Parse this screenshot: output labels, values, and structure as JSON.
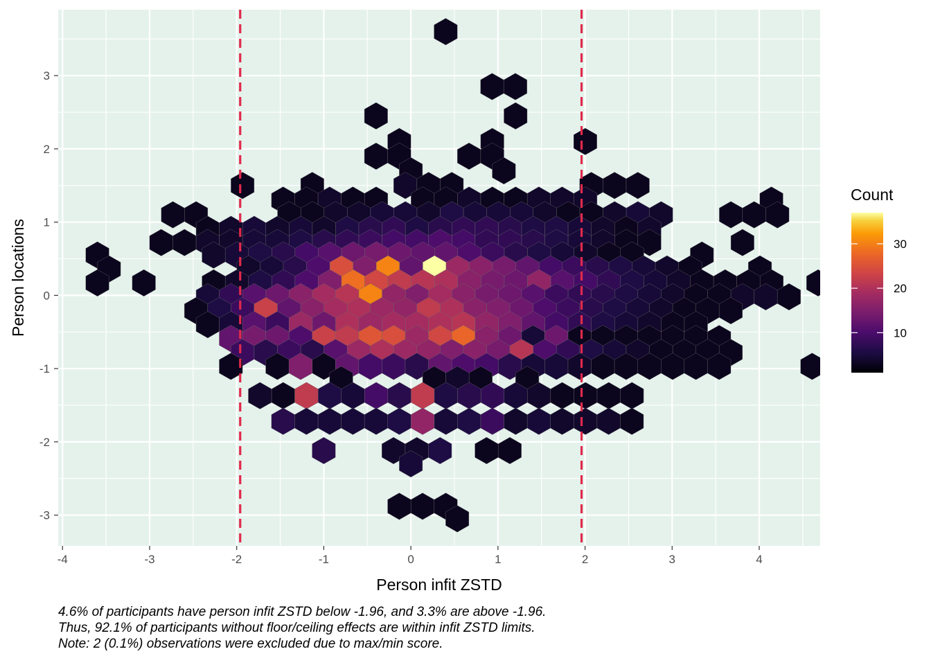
{
  "chart_data": {
    "type": "heatmap",
    "subtype": "hexbin",
    "xlabel": "Person infit ZSTD",
    "ylabel": "Person locations",
    "xlim": [
      -4.05,
      4.7
    ],
    "ylim": [
      -3.42,
      3.9
    ],
    "x_ticks": [
      -4,
      -3,
      -2,
      -1,
      0,
      1,
      2,
      3,
      4
    ],
    "y_ticks": [
      -3,
      -2,
      -1,
      0,
      1,
      2,
      3
    ],
    "x_tick_labels": [
      "-4",
      "-3",
      "-2",
      "-1",
      "0",
      "1",
      "2",
      "3",
      "4"
    ],
    "y_tick_labels": [
      "-3",
      "-2",
      "-1",
      "0",
      "1",
      "2",
      "3"
    ],
    "grid": true,
    "panel_background": "#e5f2ec",
    "reference_lines": {
      "orientation": "vertical",
      "x": [
        -1.96,
        1.96
      ],
      "style": "dashed",
      "color": "#e0294c"
    },
    "legend": {
      "title": "Count",
      "placement": "right",
      "min": 1,
      "max": 37,
      "ticks": [
        10,
        20,
        30
      ],
      "tick_labels": [
        "10",
        "20",
        "30"
      ],
      "colormap": "inferno"
    },
    "hex_row_step": 0.5,
    "hex_col_step": 0.267,
    "rows": [
      {
        "y": 3.6,
        "start": 0.4,
        "counts": [
          1
        ]
      },
      {
        "y": 2.85,
        "start": 0.933,
        "counts": [
          1,
          1
        ]
      },
      {
        "y": 2.45,
        "start": -0.4,
        "counts": [
          1,
          0,
          0,
          0,
          0,
          0,
          1
        ]
      },
      {
        "y": 2.1,
        "start": -0.133,
        "counts": [
          1,
          0,
          0,
          0,
          1,
          0,
          0,
          0,
          1
        ]
      },
      {
        "y": 1.9,
        "start": -0.4,
        "counts": [
          1,
          1,
          0,
          0,
          1,
          1
        ]
      },
      {
        "y": 1.7,
        "start": 0.0,
        "counts": [
          1,
          0,
          0,
          0,
          1
        ]
      },
      {
        "y": 1.5,
        "start": -1.933,
        "counts": [
          1,
          0,
          0,
          1,
          0,
          0,
          0,
          2,
          1,
          1,
          0,
          0,
          0,
          0,
          0,
          1,
          1,
          1,
          0,
          0,
          0,
          0,
          0,
          0,
          0,
          0,
          0,
          0,
          0,
          0,
          0,
          0,
          0,
          1
        ]
      },
      {
        "y": 1.3,
        "start": -1.467,
        "counts": [
          1,
          1,
          2,
          1,
          1,
          0,
          1,
          1,
          2,
          1,
          1,
          2,
          2,
          2,
          0,
          0,
          0,
          0,
          0,
          0,
          0,
          1
        ]
      },
      {
        "y": 1.1,
        "start": -2.733,
        "counts": [
          1,
          1,
          0,
          0,
          0,
          1,
          1,
          2,
          2,
          3,
          3,
          2,
          4,
          3,
          3,
          3,
          2,
          1,
          1,
          2,
          3,
          2,
          0,
          0,
          1,
          1,
          1
        ]
      },
      {
        "y": 0.9,
        "start": -2.333,
        "counts": [
          1,
          2,
          3,
          2,
          3,
          2,
          4,
          5,
          6,
          4,
          5,
          6,
          6,
          5,
          4,
          4,
          3,
          2,
          1,
          2,
          0,
          0,
          0,
          0,
          0,
          0,
          0,
          0,
          0,
          0,
          0,
          0,
          0,
          0,
          1
        ]
      },
      {
        "y": 0.72,
        "start": -2.867,
        "counts": [
          1,
          1,
          2,
          2,
          3,
          3,
          4,
          5,
          6,
          7,
          8,
          8,
          9,
          8,
          6,
          6,
          5,
          4,
          3,
          2,
          1,
          1,
          0,
          0,
          0,
          1,
          0,
          0,
          0,
          0,
          0,
          0,
          0,
          0,
          0,
          0,
          0,
          0,
          0,
          1
        ]
      },
      {
        "y": 0.55,
        "start": -3.6,
        "counts": [
          1,
          0,
          0,
          0,
          0,
          2,
          3,
          4,
          5,
          8,
          10,
          12,
          13,
          12,
          11,
          11,
          9,
          7,
          5,
          4,
          3,
          2,
          1,
          1,
          0,
          0,
          1,
          0,
          0,
          0,
          0,
          0,
          1
        ]
      },
      {
        "y": 0.36,
        "start": -3.467,
        "counts": [
          1,
          0,
          0,
          0,
          0,
          0,
          2,
          3,
          5,
          9,
          24,
          14,
          30,
          11,
          37,
          17,
          15,
          13,
          11,
          8,
          7,
          5,
          4,
          3,
          2,
          1,
          0,
          0,
          1,
          0,
          0,
          0,
          0,
          0,
          0,
          0,
          0,
          0,
          0,
          0,
          0,
          1
        ]
      },
      {
        "y": 0.17,
        "start": -3.6,
        "counts": [
          1,
          0,
          1,
          0,
          0,
          1,
          2,
          4,
          6,
          9,
          14,
          28,
          23,
          21,
          20,
          19,
          15,
          13,
          12,
          16,
          10,
          8,
          6,
          4,
          3,
          2,
          1,
          1,
          1,
          1,
          0,
          1
        ]
      },
      {
        "y": -0.02,
        "start": -2.333,
        "counts": [
          3,
          6,
          10,
          12,
          15,
          18,
          20,
          30,
          16,
          14,
          18,
          15,
          13,
          12,
          10,
          7,
          6,
          5,
          4,
          3,
          2,
          1,
          1,
          2,
          2,
          1
        ]
      },
      {
        "y": -0.21,
        "start": -2.467,
        "counts": [
          1,
          4,
          7,
          22,
          11,
          15,
          18,
          19,
          17,
          16,
          21,
          19,
          15,
          14,
          12,
          9,
          7,
          5,
          4,
          3,
          2,
          1,
          1,
          1,
          0,
          0,
          0,
          0,
          0,
          0,
          0,
          0,
          0,
          0,
          0,
          1
        ]
      },
      {
        "y": -0.4,
        "start": -2.333,
        "counts": [
          1,
          3,
          10,
          7,
          17,
          12,
          19,
          17,
          18,
          18,
          19,
          20,
          16,
          14,
          11,
          8,
          6,
          4,
          3,
          2,
          1,
          1,
          0,
          0,
          0,
          0,
          0,
          0,
          0,
          0,
          0,
          0,
          0,
          0,
          0,
          1
        ]
      },
      {
        "y": -0.59,
        "start": -2.067,
        "counts": [
          11,
          13,
          12,
          9,
          22,
          21,
          25,
          24,
          17,
          23,
          27,
          15,
          12,
          3,
          12,
          1,
          1,
          1,
          1,
          1,
          1,
          1,
          0,
          0,
          0,
          0,
          0,
          0,
          0,
          0,
          0,
          1
        ]
      },
      {
        "y": -0.78,
        "start": -1.933,
        "counts": [
          7,
          5,
          7,
          5,
          10,
          17,
          19,
          17,
          16,
          14,
          15,
          13,
          20,
          9,
          6,
          4,
          3,
          2,
          1,
          1,
          1,
          1,
          0,
          0,
          0,
          0,
          0,
          0,
          0,
          0,
          0,
          1
        ]
      },
      {
        "y": -0.97,
        "start": -2.067,
        "counts": [
          1,
          0,
          1,
          14,
          1,
          11,
          8,
          7,
          5,
          11,
          9,
          8,
          5,
          3,
          3,
          2,
          1,
          1,
          1,
          1,
          1,
          1,
          0,
          0,
          0,
          1
        ]
      },
      {
        "y": -1.15,
        "start": -0.8,
        "counts": [
          1,
          0,
          0,
          0,
          1,
          2,
          1,
          0,
          1
        ]
      },
      {
        "y": -1.37,
        "start": -1.733,
        "counts": [
          2,
          1,
          21,
          4,
          3,
          8,
          5,
          21,
          4,
          5,
          6,
          3,
          2,
          1,
          1,
          1,
          1
        ]
      },
      {
        "y": -1.72,
        "start": -1.467,
        "counts": [
          5,
          3,
          3,
          3,
          3,
          4,
          16,
          3,
          4,
          7,
          2,
          3,
          2,
          2,
          2,
          1
        ]
      },
      {
        "y": -2.12,
        "start": -1.0,
        "counts": [
          5,
          0,
          0,
          2,
          2,
          4,
          0,
          1,
          1
        ]
      },
      {
        "y": -2.3,
        "start": 0.0,
        "counts": [
          3
        ]
      },
      {
        "y": -2.88,
        "start": -0.133,
        "counts": [
          1,
          1,
          1
        ]
      },
      {
        "y": -3.05,
        "start": 0.533,
        "counts": [
          1
        ]
      }
    ]
  },
  "caption": {
    "lines": [
      "4.6% of participants have person infit ZSTD below -1.96, and 3.3% are above -1.96.",
      "Thus, 92.1% of participants without floor/ceiling effects are within infit ZSTD limits.",
      "Note: 2 (0.1%) observations were excluded due to max/min score."
    ]
  }
}
